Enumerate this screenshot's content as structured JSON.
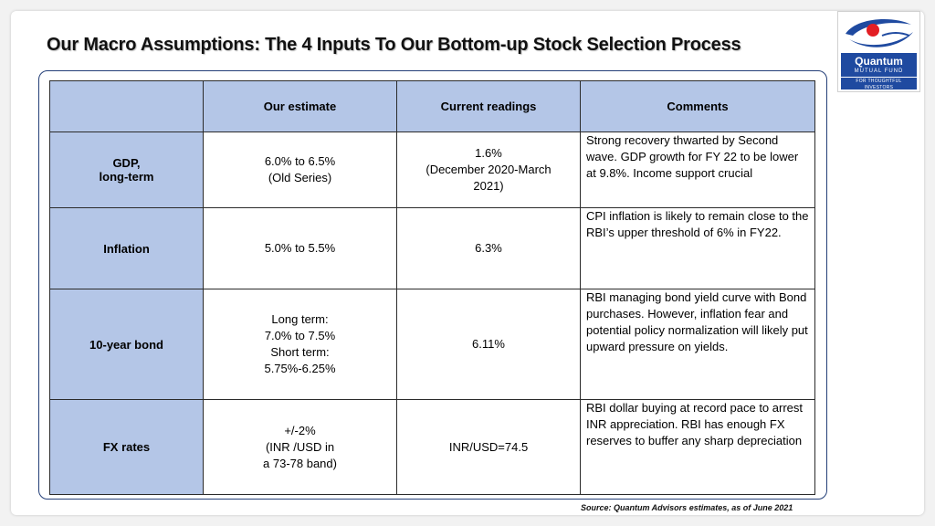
{
  "title": "Our Macro Assumptions: The 4 Inputs To Our Bottom-up Stock Selection Process",
  "logo": {
    "icon": "quantum-logo-icon",
    "name": "Quantum",
    "sub": "MUTUAL FUND",
    "tagline": "FOR THOUGHTFUL INVESTORS",
    "colors": {
      "blue": "#1f4aa0",
      "red": "#e31e24"
    }
  },
  "table": {
    "headers": [
      "",
      "Our estimate",
      "Current readings",
      "Comments"
    ],
    "rows": [
      {
        "label": [
          "GDP,",
          "long-term"
        ],
        "estimate": [
          "6.0% to 6.5%",
          "(Old Series)"
        ],
        "current": [
          "1.6%",
          "(December 2020-March",
          "2021)"
        ],
        "comment": "Strong recovery thwarted by Second wave. GDP growth for FY 22 to be lower at 9.8%. Income support crucial"
      },
      {
        "label": [
          "Inflation"
        ],
        "estimate": [
          "5.0% to 5.5%"
        ],
        "current": [
          "6.3%"
        ],
        "comment": "CPI inflation is likely to remain close to the RBI’s upper threshold of 6% in FY22."
      },
      {
        "label": [
          "10-year bond"
        ],
        "estimate": [
          "Long term:",
          "7.0% to 7.5%",
          "Short term:",
          "5.75%-6.25%"
        ],
        "current": [
          "6.11%"
        ],
        "comment": "RBI managing bond yield curve with Bond purchases. However, inflation fear and potential policy normalization will likely put upward pressure on yields."
      },
      {
        "label": [
          "FX rates"
        ],
        "estimate": [
          "+/-2%",
          "(INR /USD in",
          "a 73-78 band)"
        ],
        "current": [
          "INR/USD=74.5"
        ],
        "comment": "RBI dollar buying at record pace to arrest INR appreciation. RBI has enough FX reserves to buffer any sharp depreciation"
      }
    ],
    "colors": {
      "header_fill": "#b4c6e7",
      "border": "#2b2b2b",
      "frame": "#243f78"
    }
  },
  "source": "Source: Quantum Advisors estimates, as of  June 2021"
}
